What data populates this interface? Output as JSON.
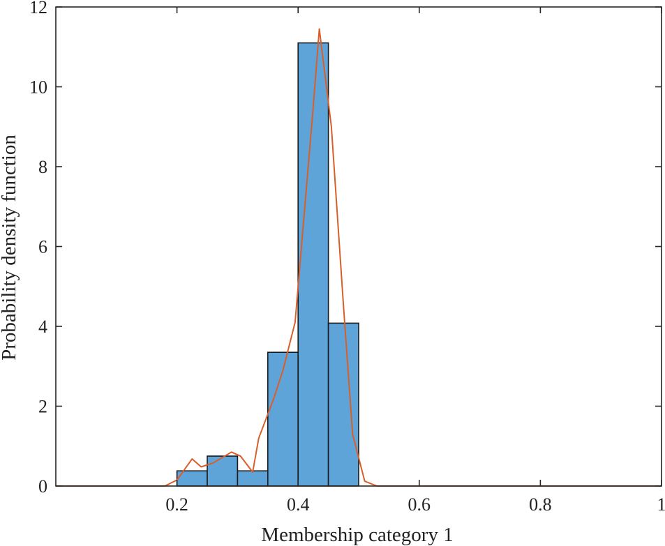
{
  "chart_data": {
    "type": "bar",
    "title": "",
    "xlabel": "Membership category 1",
    "ylabel": "Probability density function",
    "xlim": [
      0,
      1
    ],
    "ylim": [
      0,
      12
    ],
    "grid": false,
    "legend": "none",
    "x_ticks": [
      0.2,
      0.4,
      0.6,
      0.8,
      1
    ],
    "x_tick_labels": [
      "0.2",
      "0.4",
      "0.6",
      "0.8",
      "1"
    ],
    "y_ticks": [
      0,
      2,
      4,
      6,
      8,
      10,
      12
    ],
    "y_tick_labels": [
      "0",
      "2",
      "4",
      "6",
      "8",
      "10",
      "12"
    ],
    "histogram": {
      "bin_edges": [
        0.2,
        0.25,
        0.3,
        0.35,
        0.4,
        0.45,
        0.5
      ],
      "values": [
        0.38,
        0.75,
        0.38,
        3.35,
        11.1,
        4.08
      ],
      "color": "#5fa4d9",
      "edge_color": "#1a1a1a"
    },
    "density_curve": {
      "color": "#d95f2a",
      "x": [
        0,
        0.18,
        0.2,
        0.225,
        0.24,
        0.26,
        0.29,
        0.305,
        0.325,
        0.335,
        0.36,
        0.375,
        0.395,
        0.41,
        0.425,
        0.435,
        0.455,
        0.475,
        0.49,
        0.51,
        0.53,
        0.55,
        1
      ],
      "y": [
        0,
        0,
        0.15,
        0.68,
        0.48,
        0.58,
        0.85,
        0.75,
        0.35,
        1.2,
        2.2,
        2.9,
        4.1,
        6.8,
        9.5,
        11.45,
        9.0,
        4.5,
        1.3,
        0.12,
        0,
        0,
        0
      ]
    }
  }
}
